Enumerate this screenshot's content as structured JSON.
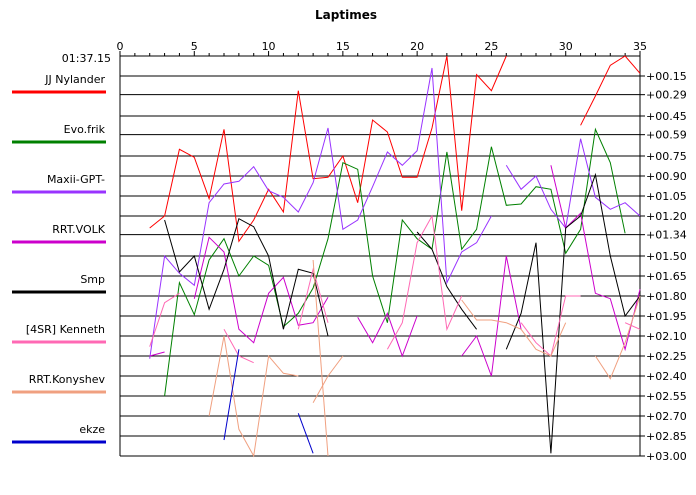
{
  "chart_data": {
    "type": "line",
    "title": "Laptimes",
    "base_label": "01:37.15",
    "xlim": [
      0,
      35
    ],
    "x_ticks": [
      0,
      5,
      10,
      15,
      20,
      25,
      30,
      35
    ],
    "ylim": [
      0,
      3.0
    ],
    "y_ticks": [
      0.15,
      0.29,
      0.45,
      0.59,
      0.75,
      0.9,
      1.05,
      1.2,
      1.34,
      1.5,
      1.65,
      1.8,
      1.95,
      2.1,
      2.25,
      2.4,
      2.55,
      2.7,
      2.85,
      3.0
    ],
    "y_tick_labels": [
      "+00.15",
      "+00.29",
      "+00.45",
      "+00.59",
      "+00.75",
      "+00.90",
      "+01.05",
      "+01.20",
      "+01.34",
      "+01.50",
      "+01.65",
      "+01.80",
      "+01.95",
      "+02.10",
      "+02.25",
      "+02.40",
      "+02.55",
      "+02.70",
      "+02.85",
      "+03.00"
    ],
    "grid": true,
    "legend_position": "left",
    "series": [
      {
        "name": "JJ Nylander",
        "color": "#ff0000",
        "segments": [
          [
            [
              2,
              1.29
            ],
            [
              3,
              1.2
            ],
            [
              4,
              0.7
            ],
            [
              5,
              0.76
            ],
            [
              6,
              1.07
            ],
            [
              7,
              0.55
            ],
            [
              8,
              1.39
            ],
            [
              9,
              1.23
            ],
            [
              10,
              1.0
            ],
            [
              11,
              1.17
            ],
            [
              12,
              0.26
            ],
            [
              13,
              0.92
            ],
            [
              14,
              0.91
            ],
            [
              15,
              0.75
            ],
            [
              16,
              1.1
            ],
            [
              17,
              0.48
            ],
            [
              18,
              0.57
            ],
            [
              19,
              0.91
            ],
            [
              20,
              0.91
            ],
            [
              21,
              0.54
            ],
            [
              22,
              0.0
            ],
            [
              23,
              1.16
            ],
            [
              24,
              0.14
            ],
            [
              25,
              0.26
            ],
            [
              26,
              0.0
            ]
          ],
          [
            [
              31,
              0.52
            ],
            [
              32,
              0.3
            ],
            [
              33,
              0.07
            ],
            [
              34,
              0.0
            ],
            [
              35,
              0.13
            ]
          ]
        ]
      },
      {
        "name": "Evo.frik",
        "color": "#008000",
        "segments": [
          [
            [
              3,
              2.55
            ],
            [
              4,
              1.7
            ],
            [
              5,
              1.94
            ],
            [
              6,
              1.53
            ],
            [
              7,
              1.37
            ],
            [
              8,
              1.65
            ],
            [
              9,
              1.5
            ],
            [
              10,
              1.57
            ],
            [
              11,
              2.03
            ],
            [
              12,
              1.93
            ],
            [
              13,
              1.74
            ],
            [
              14,
              1.37
            ],
            [
              15,
              0.8
            ],
            [
              16,
              0.85
            ],
            [
              17,
              1.65
            ],
            [
              18,
              2.0
            ],
            [
              19,
              1.23
            ],
            [
              20,
              1.37
            ],
            [
              21,
              1.45
            ],
            [
              22,
              0.72
            ],
            [
              23,
              1.45
            ],
            [
              24,
              1.3
            ],
            [
              25,
              0.68
            ],
            [
              26,
              1.12
            ],
            [
              27,
              1.11
            ],
            [
              28,
              0.98
            ],
            [
              29,
              1.0
            ],
            [
              30,
              1.48
            ],
            [
              31,
              1.3
            ],
            [
              32,
              0.55
            ],
            [
              33,
              0.8
            ],
            [
              34,
              1.33
            ]
          ]
        ]
      },
      {
        "name": "Maxii-GPT-",
        "color": "#9933ff",
        "segments": [
          [
            [
              2,
              2.27
            ],
            [
              3,
              1.5
            ],
            [
              4,
              1.63
            ],
            [
              5,
              1.72
            ],
            [
              6,
              1.1
            ],
            [
              7,
              0.96
            ],
            [
              8,
              0.94
            ],
            [
              9,
              0.83
            ],
            [
              10,
              1.01
            ],
            [
              11,
              1.06
            ],
            [
              12,
              1.17
            ],
            [
              13,
              0.95
            ],
            [
              14,
              0.54
            ],
            [
              15,
              1.3
            ],
            [
              16,
              1.23
            ],
            [
              17,
              0.98
            ],
            [
              18,
              0.72
            ],
            [
              19,
              0.82
            ],
            [
              20,
              0.71
            ],
            [
              21,
              0.09
            ],
            [
              22,
              1.7
            ],
            [
              23,
              1.47
            ],
            [
              24,
              1.4
            ],
            [
              25,
              1.2
            ]
          ],
          [
            [
              26,
              0.82
            ],
            [
              27,
              1.0
            ],
            [
              28,
              0.9
            ],
            [
              29,
              1.15
            ],
            [
              30,
              1.29
            ],
            [
              31,
              0.62
            ],
            [
              32,
              1.06
            ],
            [
              33,
              1.15
            ],
            [
              34,
              1.1
            ],
            [
              35,
              1.2
            ]
          ]
        ]
      },
      {
        "name": "RRT.VOLK",
        "color": "#cc00cc",
        "segments": [
          [
            [
              2,
              2.25
            ],
            [
              3,
              2.22
            ]
          ],
          [
            [
              5,
              1.82
            ],
            [
              6,
              1.36
            ],
            [
              7,
              1.47
            ],
            [
              8,
              2.05
            ],
            [
              9,
              2.15
            ],
            [
              10,
              1.78
            ],
            [
              11,
              1.66
            ],
            [
              12,
              2.02
            ],
            [
              13,
              2.0
            ],
            [
              14,
              1.81
            ]
          ],
          [
            [
              16,
              1.96
            ],
            [
              17,
              2.15
            ],
            [
              18,
              1.93
            ],
            [
              19,
              2.25
            ],
            [
              20,
              1.95
            ]
          ],
          [
            [
              23,
              2.25
            ],
            [
              24,
              2.1
            ],
            [
              25,
              2.4
            ],
            [
              26,
              1.5
            ],
            [
              27,
              2.05
            ]
          ],
          [
            [
              29,
              0.82
            ],
            [
              30,
              1.29
            ],
            [
              31,
              1.18
            ],
            [
              32,
              1.78
            ],
            [
              33,
              1.82
            ],
            [
              34,
              2.2
            ],
            [
              35,
              1.75
            ]
          ]
        ]
      },
      {
        "name": "Smp",
        "color": "#000000",
        "segments": [
          [
            [
              3,
              1.23
            ],
            [
              4,
              1.62
            ],
            [
              5,
              1.5
            ],
            [
              6,
              1.9
            ],
            [
              7,
              1.6
            ],
            [
              8,
              1.22
            ],
            [
              9,
              1.28
            ],
            [
              10,
              1.5
            ],
            [
              11,
              2.05
            ],
            [
              12,
              1.6
            ],
            [
              13,
              1.63
            ],
            [
              14,
              2.1
            ]
          ],
          [
            [
              20,
              1.32
            ],
            [
              21,
              1.45
            ],
            [
              22,
              1.73
            ],
            [
              23,
              1.9
            ],
            [
              24,
              2.05
            ]
          ],
          [
            [
              26,
              2.2
            ],
            [
              27,
              1.93
            ],
            [
              28,
              1.4
            ],
            [
              29,
              2.98
            ],
            [
              30,
              1.29
            ],
            [
              31,
              1.2
            ],
            [
              32,
              0.89
            ],
            [
              33,
              1.5
            ],
            [
              34,
              1.95
            ],
            [
              35,
              1.8
            ]
          ]
        ]
      },
      {
        "name": "[4SR] Kenneth",
        "color": "#ff69b4",
        "segments": [
          [
            [
              2,
              2.18
            ],
            [
              3,
              1.85
            ],
            [
              4,
              1.78
            ]
          ],
          [
            [
              7,
              2.05
            ],
            [
              8,
              2.25
            ],
            [
              9,
              2.3
            ]
          ],
          [
            [
              12,
              2.05
            ],
            [
              13,
              1.6
            ],
            [
              14,
              2.0
            ]
          ],
          [
            [
              18,
              2.2
            ],
            [
              19,
              2.0
            ],
            [
              20,
              1.4
            ],
            [
              21,
              1.2
            ],
            [
              22,
              2.05
            ],
            [
              23,
              1.8
            ]
          ],
          [
            [
              27,
              2.0
            ],
            [
              28,
              2.15
            ],
            [
              29,
              2.25
            ],
            [
              30,
              1.8
            ],
            [
              31,
              1.8
            ]
          ],
          [
            [
              34,
              2.0
            ],
            [
              35,
              2.05
            ]
          ]
        ]
      },
      {
        "name": "RRT.Konyshev",
        "color": "#f0a080",
        "segments": [
          [
            [
              6,
              2.7
            ],
            [
              7,
              2.1
            ],
            [
              8,
              2.8
            ],
            [
              9,
              3.0
            ],
            [
              10,
              2.25
            ],
            [
              11,
              2.38
            ],
            [
              12,
              2.4
            ]
          ],
          [
            [
              13,
              2.6
            ],
            [
              14,
              2.4
            ],
            [
              15,
              2.25
            ]
          ],
          [
            [
              23,
              1.83
            ],
            [
              24,
              1.98
            ],
            [
              25,
              1.98
            ],
            [
              26,
              2.0
            ],
            [
              27,
              2.05
            ],
            [
              28,
              2.2
            ],
            [
              29,
              2.25
            ],
            [
              30,
              2.0
            ]
          ],
          [
            [
              32,
              2.25
            ],
            [
              33,
              2.42
            ],
            [
              34,
              2.15
            ],
            [
              35,
              1.8
            ]
          ],
          [
            [
              13,
              1.53
            ],
            [
              14,
              3.0
            ]
          ]
        ]
      },
      {
        "name": "ekze",
        "color": "#0000cc",
        "segments": [
          [
            [
              7,
              2.88
            ],
            [
              8,
              2.2
            ]
          ],
          [
            [
              12,
              2.68
            ],
            [
              13,
              2.98
            ]
          ]
        ]
      }
    ]
  }
}
